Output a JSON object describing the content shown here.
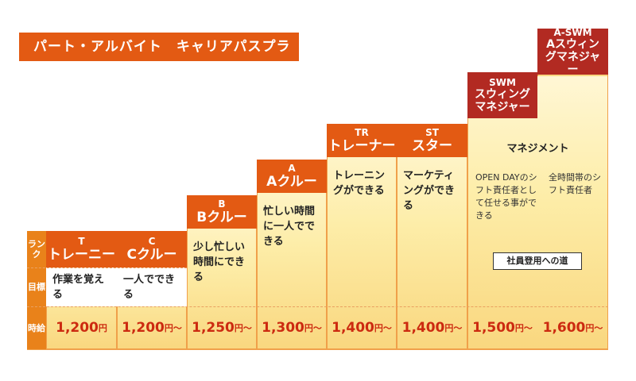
{
  "title": "パート・アルバイト　キャリアパスプラン",
  "side_labels": {
    "rank": "ランク",
    "goal": "目標",
    "wage": "時給"
  },
  "columns": [
    {
      "code": "T",
      "name": "トレーニー",
      "goal": "作業を覚える",
      "wage": "1,200",
      "unit": "円"
    },
    {
      "code": "C",
      "name": "Cクルー",
      "goal": "一人でできる",
      "wage": "1,200",
      "unit": "円〜"
    },
    {
      "code": "B",
      "name": "Bクルー",
      "goal": "少し忙しい時間にできる",
      "wage": "1,250",
      "unit": "円〜"
    },
    {
      "code": "A",
      "name": "Aクルー",
      "goal": "忙しい時間に一人でできる",
      "wage": "1,300",
      "unit": "円〜"
    },
    {
      "code": "TR",
      "name": "トレーナー",
      "goal": "トレーニングができる",
      "wage": "1,400",
      "unit": "円〜"
    },
    {
      "code": "ST",
      "name": "スター",
      "goal": "マーケティングができる",
      "wage": "1,400",
      "unit": "円〜"
    },
    {
      "code": "SWM",
      "name": "スウィングマネジャー",
      "goal": "",
      "wage": "1,500",
      "unit": "円〜"
    },
    {
      "code": "A-SWM",
      "name": "Aスウィングマネジャー",
      "goal": "",
      "wage": "1,600",
      "unit": "円〜"
    }
  ],
  "management": {
    "heading": "マネジメント",
    "swm_note": "OPEN DAYのシフト責任者として任せる事ができる",
    "aswm_note": "全時間帯のシフト責任者",
    "employee_path": "社員登用への道"
  },
  "colors": {
    "header_orange": "#e35a13",
    "header_red": "#b22a22",
    "wage_text": "#cc2a10",
    "side_bar": "#e9821a"
  }
}
